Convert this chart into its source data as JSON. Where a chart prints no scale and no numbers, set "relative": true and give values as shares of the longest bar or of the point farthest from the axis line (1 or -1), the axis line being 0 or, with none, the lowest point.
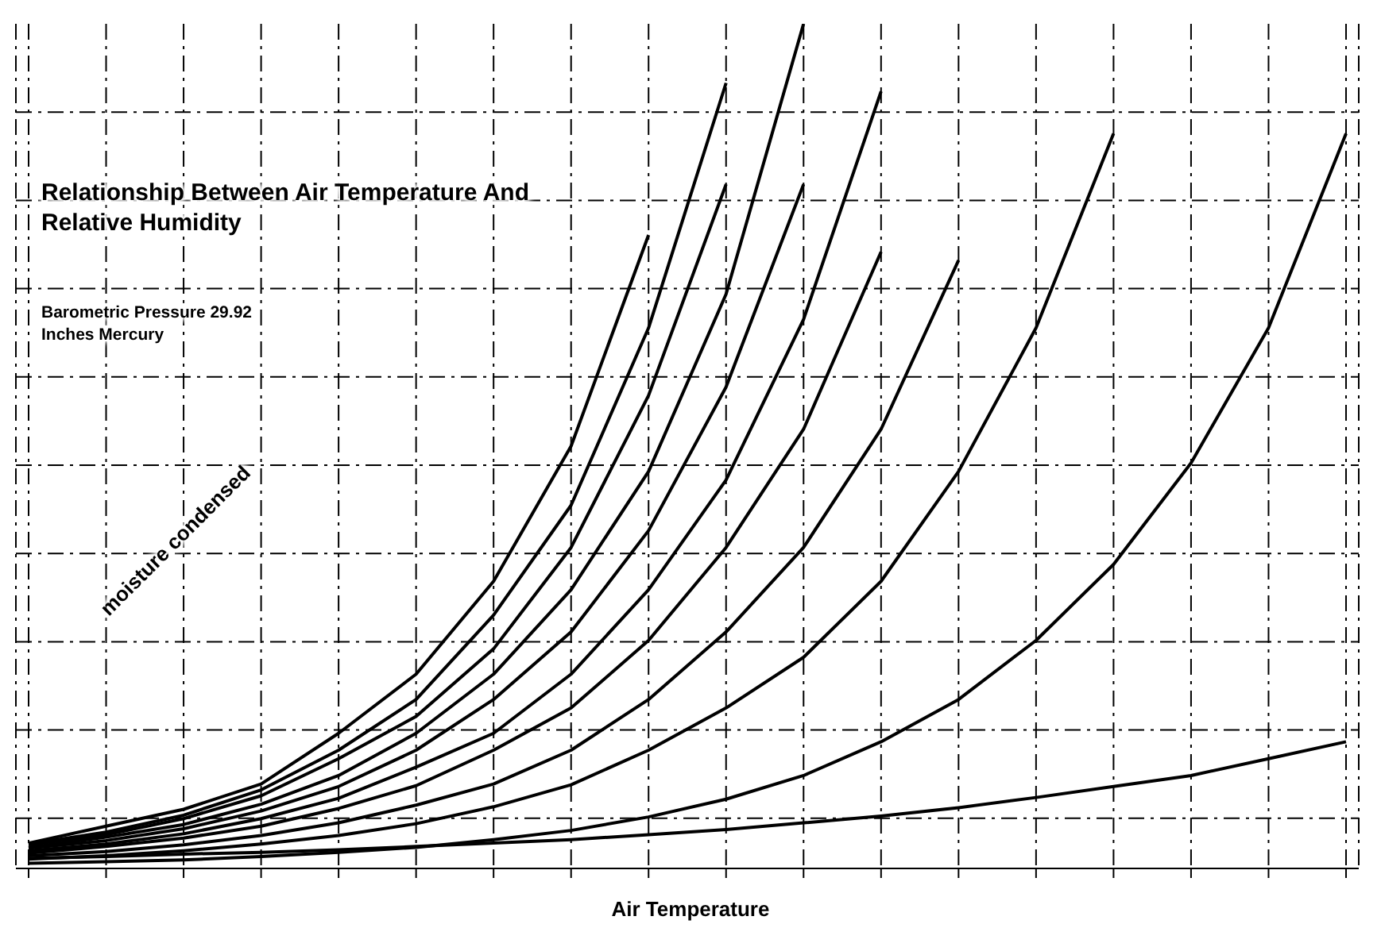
{
  "chart_data": {
    "type": "line",
    "title": "Relationship Between Air Temperature And Relative Humidity",
    "subtitle": "Barometric Pressure 29.92 Inches Mercury",
    "xlabel": "Air Temperature",
    "annotations": [
      "moisture condensed"
    ],
    "relative": true,
    "grid": true,
    "marker": "none",
    "line_style": "solid",
    "categories": [
      null,
      null,
      null,
      null,
      null,
      null,
      null,
      null,
      null,
      null,
      null,
      null,
      null,
      null,
      null,
      null,
      null,
      null
    ],
    "series": [
      {
        "color": "#000000",
        "values": [
          0.03,
          0.05,
          0.07,
          0.1,
          0.16,
          0.23,
          0.34,
          0.5,
          0.75,
          null,
          null,
          null,
          null,
          null,
          null,
          null,
          null,
          null
        ]
      },
      {
        "color": "#000000",
        "values": [
          0.029,
          0.043,
          0.063,
          0.093,
          0.14,
          0.2,
          0.3,
          0.43,
          0.64,
          0.93,
          null,
          null,
          null,
          null,
          null,
          null,
          null,
          null
        ]
      },
      {
        "color": "#000000",
        "values": [
          0.028,
          0.04,
          0.059,
          0.086,
          0.13,
          0.18,
          0.26,
          0.38,
          0.56,
          0.81,
          null,
          null,
          null,
          null,
          null,
          null,
          null,
          null
        ]
      },
      {
        "color": "#000000",
        "values": [
          0.025,
          0.037,
          0.052,
          0.076,
          0.11,
          0.16,
          0.23,
          0.33,
          0.47,
          0.68,
          1,
          null,
          null,
          null,
          null,
          null,
          null,
          null
        ]
      },
      {
        "color": "#000000",
        "values": [
          0.024,
          0.033,
          0.047,
          0.068,
          0.097,
          0.14,
          0.2,
          0.28,
          0.4,
          0.57,
          0.81,
          null,
          null,
          null,
          null,
          null,
          null,
          null
        ]
      },
      {
        "color": "#000000",
        "values": [
          0.021,
          0.029,
          0.041,
          0.059,
          0.083,
          0.12,
          0.16,
          0.23,
          0.33,
          0.46,
          0.65,
          0.92,
          null,
          null,
          null,
          null,
          null,
          null
        ]
      },
      {
        "color": "#000000",
        "values": [
          0.018,
          0.026,
          0.036,
          0.05,
          0.071,
          0.098,
          0.14,
          0.19,
          0.27,
          0.38,
          0.52,
          0.73,
          null,
          null,
          null,
          null,
          null,
          null
        ]
      },
      {
        "color": "#000000",
        "values": [
          0.015,
          0.02,
          0.028,
          0.039,
          0.054,
          0.075,
          0.1,
          0.14,
          0.2,
          0.28,
          0.38,
          0.52,
          0.72,
          null,
          null,
          null,
          null,
          null
        ]
      },
      {
        "color": "#000000",
        "values": [
          0.011,
          0.015,
          0.021,
          0.029,
          0.039,
          0.053,
          0.073,
          0.099,
          0.14,
          0.19,
          0.25,
          0.34,
          0.47,
          0.64,
          0.87,
          null,
          null,
          null
        ]
      },
      {
        "color": "#000000",
        "values": [
          0.006,
          0.008,
          0.01,
          0.014,
          0.019,
          0.025,
          0.034,
          0.045,
          0.061,
          0.082,
          0.11,
          0.15,
          0.2,
          0.27,
          0.36,
          0.48,
          0.64,
          0.87
        ]
      },
      {
        "color": "#000000",
        "values": [
          0.012,
          0.014,
          0.017,
          0.019,
          0.022,
          0.026,
          0.03,
          0.034,
          0.04,
          0.046,
          0.054,
          0.062,
          0.072,
          0.084,
          0.097,
          0.11,
          0.13,
          0.15
        ]
      }
    ]
  }
}
